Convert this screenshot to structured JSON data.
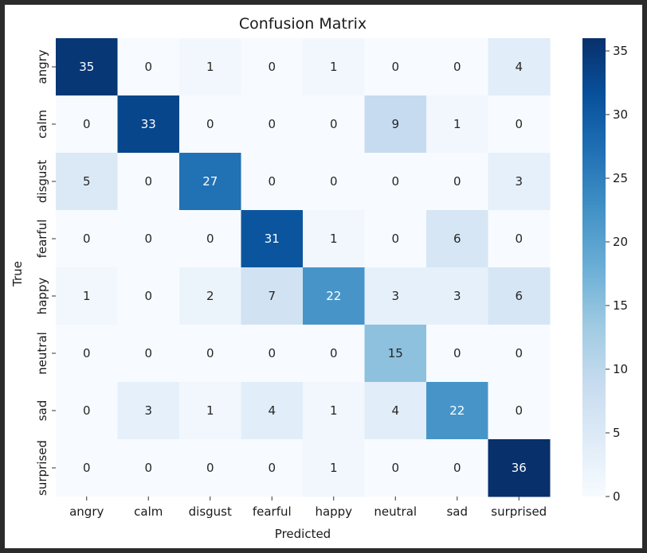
{
  "chart_data": {
    "type": "heatmap",
    "title": "Confusion Matrix",
    "xlabel": "Predicted",
    "ylabel": "True",
    "x_categories": [
      "angry",
      "calm",
      "disgust",
      "fearful",
      "happy",
      "neutral",
      "sad",
      "surprised"
    ],
    "y_categories": [
      "angry",
      "calm",
      "disgust",
      "fearful",
      "happy",
      "neutral",
      "sad",
      "surprised"
    ],
    "values": [
      [
        35,
        0,
        1,
        0,
        1,
        0,
        0,
        4
      ],
      [
        0,
        33,
        0,
        0,
        0,
        9,
        1,
        0
      ],
      [
        5,
        0,
        27,
        0,
        0,
        0,
        0,
        3
      ],
      [
        0,
        0,
        0,
        31,
        1,
        0,
        6,
        0
      ],
      [
        1,
        0,
        2,
        7,
        22,
        3,
        3,
        6
      ],
      [
        0,
        0,
        0,
        0,
        0,
        15,
        0,
        0
      ],
      [
        0,
        3,
        1,
        4,
        1,
        4,
        22,
        0
      ],
      [
        0,
        0,
        0,
        0,
        1,
        0,
        0,
        36
      ]
    ],
    "colormap": "Blues",
    "color_range": [
      0,
      36
    ],
    "colorbar_ticks": [
      0,
      5,
      10,
      15,
      20,
      25,
      30,
      35
    ],
    "annotate": true
  }
}
